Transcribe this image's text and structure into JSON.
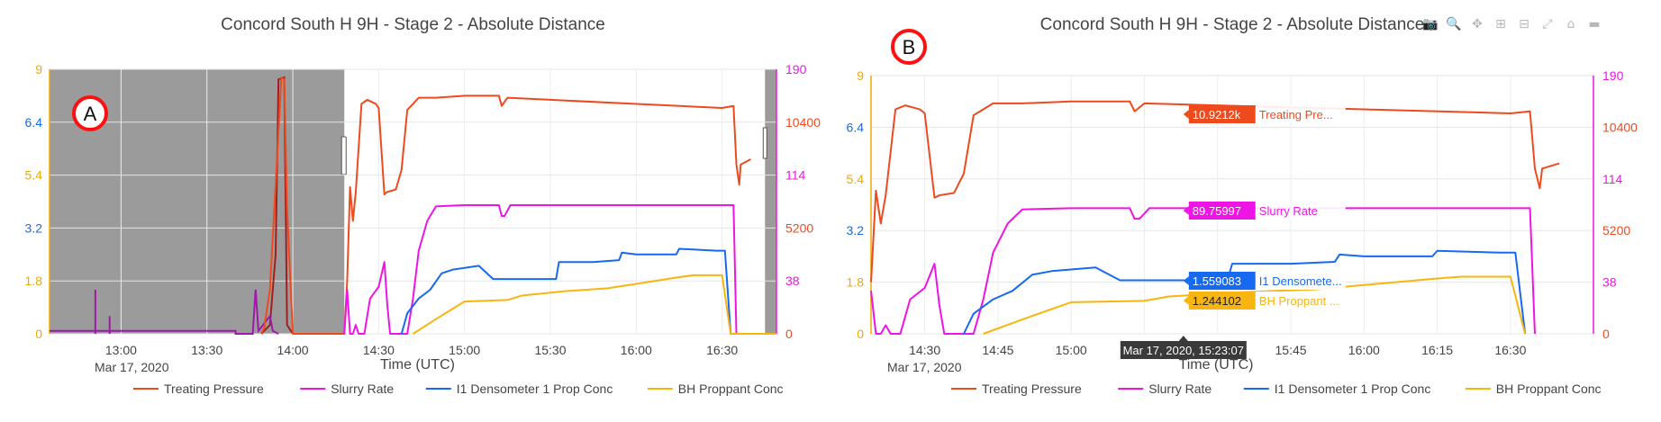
{
  "colors": {
    "treating": "#ee4a1e",
    "slurry": "#ee14e6",
    "densometer": "#1769ef",
    "bh": "#f9b50f",
    "axis_left_top": "#f2a900",
    "axis_left_blue": "#1769ef",
    "selection": "#8a8a8a",
    "badge": "#ff1010",
    "spike": "#a11f1f",
    "spike_purple": "#9b1aa8",
    "tooltip_bg": "#3a3a3a"
  },
  "modebar": {
    "icons": [
      "camera-icon",
      "zoom-icon",
      "pan-icon",
      "zoom-in-icon",
      "zoom-out-icon",
      "autoscale-icon",
      "home-icon",
      "spikelines-icon"
    ],
    "glyphs": [
      "📷",
      "🔍",
      "✥",
      "⊞",
      "⊟",
      "⤢",
      "⌂",
      "▬"
    ]
  },
  "chart_data": [
    {
      "type": "line",
      "badge": "A",
      "title": "Concord South H 9H - Stage 2 - Absolute Distance",
      "xlabel": "Time (UTC)",
      "date_label": "Mar 17, 2020",
      "x_range": [
        "12:35",
        "16:49"
      ],
      "x_ticks": [
        "13:00",
        "13:30",
        "14:00",
        "14:30",
        "15:00",
        "15:30",
        "16:00",
        "16:30"
      ],
      "y_left_ticks": [
        "0",
        "1.8",
        "3.2",
        "5.4",
        "6.4",
        "9"
      ],
      "y_right_ticks_magenta": [
        "0",
        "38",
        "114",
        "190"
      ],
      "y_right_ticks_orange": [
        "5200",
        "10400"
      ],
      "shaded_region": [
        "12:35",
        "14:18"
      ],
      "shaded_region_end": [
        "16:45",
        "16:49"
      ],
      "legend": [
        "Treating Pressure",
        "Slurry Rate",
        "I1 Densometer 1 Prop Conc",
        "BH Proppant Conc"
      ],
      "series": [
        {
          "name": "Treating Pressure",
          "points": [
            [
              "13:49",
              0
            ],
            [
              "13:50",
              0.2
            ],
            [
              "13:52",
              1.5
            ],
            [
              "13:54",
              5
            ],
            [
              "13:56",
              8.6
            ],
            [
              "13:57",
              8.5
            ],
            [
              "13:58",
              4
            ],
            [
              "14:00",
              0
            ],
            [
              "14:18",
              0
            ],
            [
              "14:19",
              1.8
            ],
            [
              "14:20",
              4.9
            ],
            [
              "14:21",
              3.5
            ],
            [
              "14:22",
              4.7
            ],
            [
              "14:24",
              7.3
            ],
            [
              "14:26",
              7.5
            ],
            [
              "14:29",
              7.3
            ],
            [
              "14:30",
              7.1
            ],
            [
              "14:32",
              4.6
            ],
            [
              "14:33",
              4.7
            ],
            [
              "14:36",
              4.8
            ],
            [
              "14:38",
              5.5
            ],
            [
              "14:40",
              7.0
            ],
            [
              "14:44",
              7.6
            ],
            [
              "14:50",
              7.6
            ],
            [
              "15:00",
              7.7
            ],
            [
              "15:12",
              7.7
            ],
            [
              "15:13",
              7.2
            ],
            [
              "15:15",
              7.6
            ],
            [
              "15:30",
              7.5
            ],
            [
              "16:00",
              7.3
            ],
            [
              "16:30",
              7.1
            ],
            [
              "16:34",
              7.2
            ],
            [
              "16:35",
              5.6
            ],
            [
              "16:36",
              5.0
            ],
            [
              "16:36.5",
              5.6
            ],
            [
              "16:40",
              5.7
            ]
          ]
        },
        {
          "name": "Slurry Rate",
          "points": [
            [
              "14:18",
              0
            ],
            [
              "14:19",
              1.5
            ],
            [
              "14:20",
              0
            ],
            [
              "14:21",
              0
            ],
            [
              "14:22",
              0.3
            ],
            [
              "14:23",
              0
            ],
            [
              "14:25",
              0
            ],
            [
              "14:27",
              1.2
            ],
            [
              "14:30",
              1.6
            ],
            [
              "14:32",
              2.3
            ],
            [
              "14:33",
              1.0
            ],
            [
              "14:34",
              0
            ],
            [
              "14:40",
              0
            ],
            [
              "14:42",
              1.2
            ],
            [
              "14:44",
              2.6
            ],
            [
              "14:47",
              3.5
            ],
            [
              "14:50",
              4.1
            ],
            [
              "15:00",
              4.15
            ],
            [
              "15:12",
              4.15
            ],
            [
              "15:13",
              3.7
            ],
            [
              "15:14",
              3.7
            ],
            [
              "15:16",
              4.15
            ],
            [
              "16:34",
              4.15
            ],
            [
              "16:35",
              0
            ],
            [
              "16:49",
              0
            ]
          ]
        },
        {
          "name": "I1 Densometer 1 Prop Conc",
          "points": [
            [
              "14:38",
              0
            ],
            [
              "14:40",
              0.7
            ],
            [
              "14:44",
              1.2
            ],
            [
              "14:48",
              1.5
            ],
            [
              "14:52",
              2.0
            ],
            [
              "14:56",
              2.1
            ],
            [
              "15:05",
              2.2
            ],
            [
              "15:10",
              1.85
            ],
            [
              "15:15",
              1.85
            ],
            [
              "15:32",
              1.85
            ],
            [
              "15:33",
              2.3
            ],
            [
              "15:45",
              2.3
            ],
            [
              "15:54",
              2.35
            ],
            [
              "15:55",
              2.55
            ],
            [
              "16:00",
              2.5
            ],
            [
              "16:10",
              2.5
            ],
            [
              "16:14",
              2.5
            ],
            [
              "16:15",
              2.65
            ],
            [
              "16:28",
              2.6
            ],
            [
              "16:31",
              2.6
            ],
            [
              "16:33",
              0
            ],
            [
              "16:49",
              0
            ]
          ]
        },
        {
          "name": "BH Proppant Conc",
          "points": [
            [
              "14:42",
              0
            ],
            [
              "14:50",
              0.5
            ],
            [
              "14:55",
              0.8
            ],
            [
              "15:00",
              1.1
            ],
            [
              "15:15",
              1.15
            ],
            [
              "15:20",
              1.3
            ],
            [
              "15:35",
              1.45
            ],
            [
              "15:50",
              1.55
            ],
            [
              "16:00",
              1.7
            ],
            [
              "16:15",
              1.9
            ],
            [
              "16:20",
              1.95
            ],
            [
              "16:30",
              1.95
            ],
            [
              "16:33",
              0
            ],
            [
              "16:49",
              0
            ]
          ]
        }
      ]
    },
    {
      "type": "line",
      "badge": "B",
      "title": "Concord South H 9H - Stage 2 - Absolute Distance",
      "xlabel": "Time (UTC)",
      "date_label": "Mar 17, 2020",
      "x_range": [
        "14:19",
        "16:47"
      ],
      "x_ticks": [
        "14:30",
        "14:45",
        "15:00",
        "15:15",
        "15:30",
        "15:45",
        "16:00",
        "16:15",
        "16:30"
      ],
      "y_left_ticks": [
        "0",
        "1.8",
        "3.2",
        "5.4",
        "6.4",
        "9"
      ],
      "y_right_ticks_magenta": [
        "0",
        "38",
        "114",
        "190"
      ],
      "y_right_ticks_orange": [
        "5200",
        "10400"
      ],
      "legend": [
        "Treating Pressure",
        "Slurry Rate",
        "I1 Densometer 1 Prop Conc",
        "BH Proppant Conc"
      ],
      "hover_time": "Mar 17, 2020, 15:23:07",
      "hover_x": "15:23",
      "hover_labels": [
        {
          "value": "10.9212k",
          "name": "Treating Pre...",
          "series": 0
        },
        {
          "value": "89.75997",
          "name": "Slurry Rate",
          "series": 1
        },
        {
          "value": "1.559083",
          "name": "I1 Densomete...",
          "series": 2
        },
        {
          "value": "1.244102",
          "name": "BH Proppant ...",
          "series": 3
        }
      ],
      "series_ref": "same as chart A (Treating Pressure, Slurry Rate, I1 Densometer 1 Prop Conc, BH Proppant Conc)"
    }
  ]
}
